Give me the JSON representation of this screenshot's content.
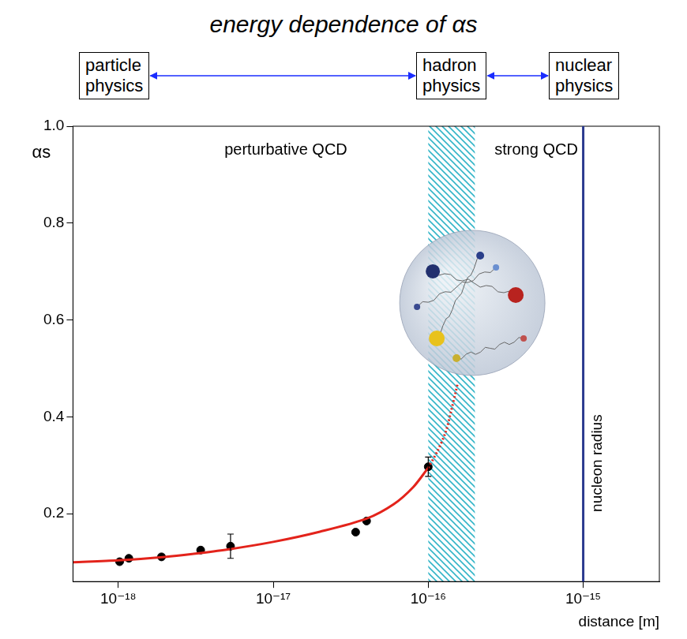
{
  "chart_data": {
    "type": "scatter",
    "title": "energy dependence of αs",
    "header_boxes": [
      "particle physics",
      "hadron physics",
      "nuclear physics"
    ],
    "x_label": "distance [m]",
    "y_label": "αs",
    "log": "x",
    "grid": false,
    "xlim": [
      5.1e-19,
      3.1e-15
    ],
    "xticks": [
      {
        "value": 1e-18,
        "label": "10⁻¹⁸"
      },
      {
        "value": 1e-17,
        "label": "10⁻¹⁷"
      },
      {
        "value": 1e-16,
        "label": "10⁻¹⁶"
      },
      {
        "value": 1e-15,
        "label": "10⁻¹⁵"
      }
    ],
    "ylim": [
      0.06,
      1.0
    ],
    "yticks": [
      0.2,
      0.4,
      0.6,
      0.8,
      {
        "value": 1.0,
        "label": "1.0"
      }
    ],
    "band": {
      "x": [
        1e-16,
        2e-16
      ],
      "color": "#33b5c8"
    },
    "annotations": [
      {
        "text": "perturbative QCD"
      },
      {
        "text": "strong QCD"
      },
      {
        "text": "nucleon radius",
        "x": 1e-15,
        "color": "#2b3a8f"
      }
    ],
    "series": [
      {
        "type": "line",
        "color": "#e3231b",
        "line_style": "solid",
        "x": [
          5.1e-19,
          1e-18,
          2e-18,
          3e-18,
          5e-18,
          1e-17,
          2e-17,
          4e-17,
          6e-17,
          8e-17,
          1e-16
        ],
        "values": [
          0.1,
          0.104,
          0.111,
          0.117,
          0.126,
          0.142,
          0.163,
          0.19,
          0.22,
          0.255,
          0.295
        ]
      },
      {
        "type": "line",
        "color": "#e3231b",
        "line_style": "dotted",
        "x": [
          1e-16,
          1.15e-16,
          1.3e-16,
          1.4e-16,
          1.5e-16,
          1.55e-16
        ],
        "values": [
          0.295,
          0.33,
          0.37,
          0.41,
          0.45,
          0.47
        ]
      },
      {
        "type": "scatter",
        "color": "#000000",
        "marker": "circle",
        "x": [
          1.02e-18,
          1.17e-18,
          1.9e-18,
          3.4e-18,
          5.3e-18,
          3.4e-17,
          4e-17,
          1e-16
        ],
        "values": [
          0.101,
          0.108,
          0.111,
          0.125,
          0.133,
          0.162,
          0.185,
          0.297
        ],
        "errors": [
          null,
          null,
          null,
          null,
          0.025,
          null,
          null,
          0.02
        ]
      }
    ]
  }
}
